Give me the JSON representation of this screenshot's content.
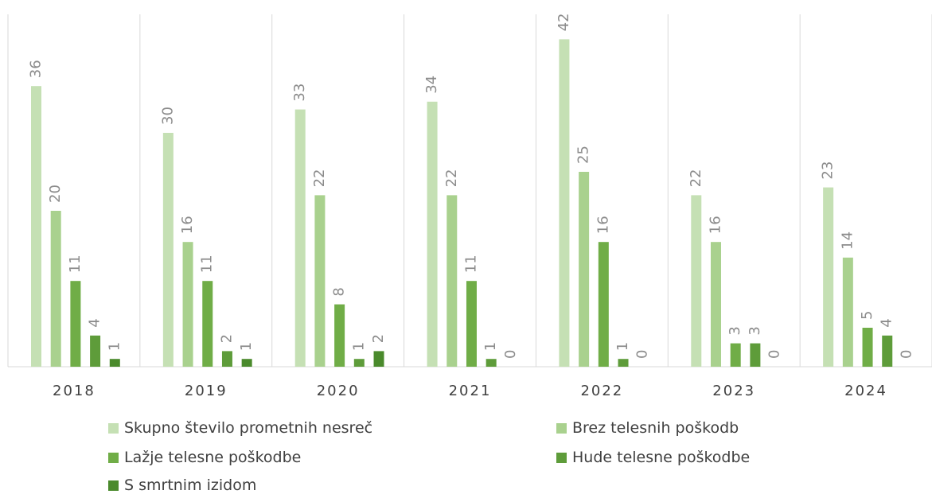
{
  "chart_data": {
    "type": "bar",
    "categories": [
      "2018",
      "2019",
      "2020",
      "2021",
      "2022",
      "2023",
      "2024"
    ],
    "series": [
      {
        "name": "Skupno število prometnih nesreč",
        "values": [
          36,
          30,
          33,
          34,
          42,
          22,
          23
        ],
        "color": "#c5e0b4"
      },
      {
        "name": "Brez telesnih poškodb",
        "values": [
          20,
          16,
          22,
          22,
          25,
          16,
          14
        ],
        "color": "#a9d18e"
      },
      {
        "name": "Lažje telesne poškodbe",
        "values": [
          11,
          11,
          8,
          11,
          16,
          3,
          5
        ],
        "color": "#70ad47"
      },
      {
        "name": "Hude telesne poškodbe",
        "values": [
          4,
          2,
          1,
          1,
          1,
          3,
          4
        ],
        "color": "#5e9c3a"
      },
      {
        "name": "S smrtnim izidom",
        "values": [
          1,
          1,
          2,
          0,
          0,
          0,
          0
        ],
        "color": "#4a8a2c"
      }
    ],
    "ylim": [
      0,
      46
    ],
    "grid": "vertical category separators",
    "legend_position": "bottom",
    "data_labels": true,
    "title": "",
    "xlabel": "",
    "ylabel": ""
  },
  "label_color": "#8c8c8c",
  "axis_color": "#d9d9d9",
  "tick_color": "#404040"
}
